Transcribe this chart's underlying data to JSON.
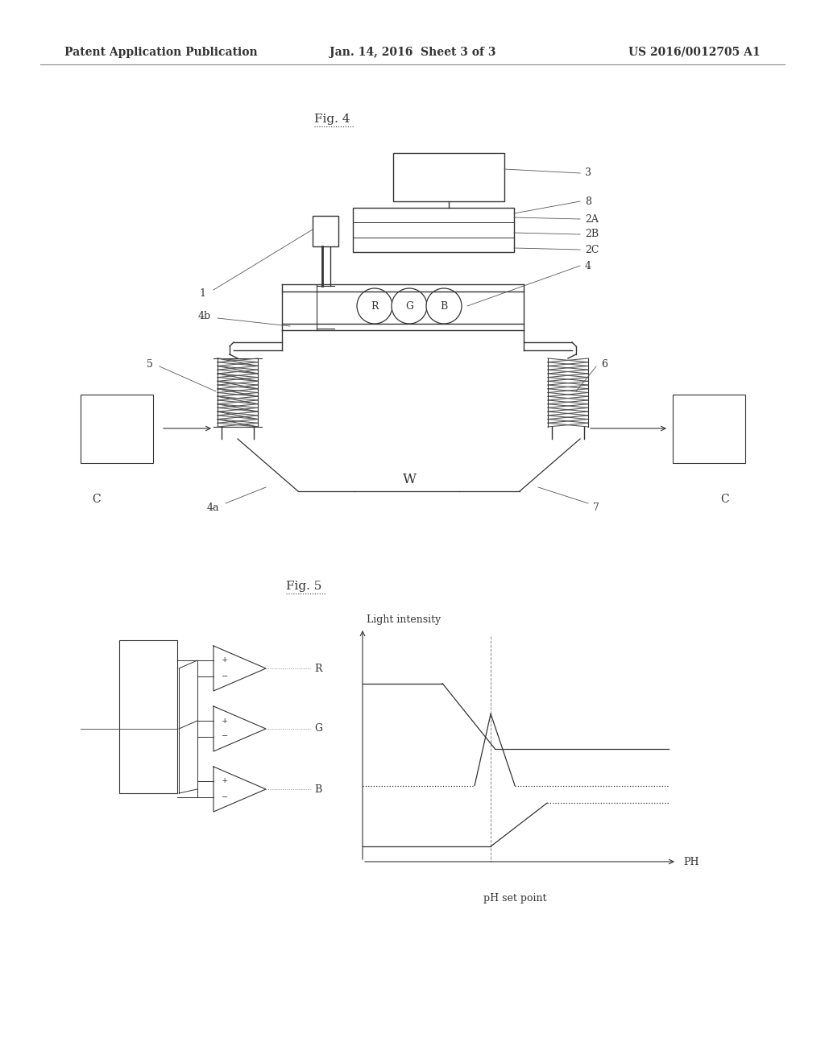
{
  "bg_color": "#ffffff",
  "line_color": "#333333",
  "header_left": "Patent Application Publication",
  "header_mid": "Jan. 14, 2016  Sheet 3 of 3",
  "header_right": "US 2016/0012705 A1"
}
